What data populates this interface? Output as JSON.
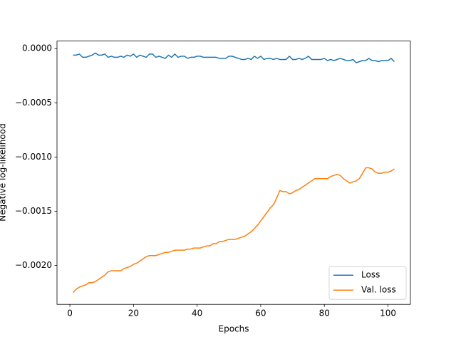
{
  "chart_data": {
    "type": "line",
    "x_label": "Epochs",
    "y_label": "Negative log-likelihood",
    "x": [
      1,
      2,
      3,
      4,
      5,
      6,
      7,
      8,
      9,
      10,
      11,
      12,
      13,
      14,
      15,
      16,
      17,
      18,
      19,
      20,
      21,
      22,
      23,
      24,
      25,
      26,
      27,
      28,
      29,
      30,
      31,
      32,
      33,
      34,
      35,
      36,
      37,
      38,
      39,
      40,
      41,
      42,
      43,
      44,
      45,
      46,
      47,
      48,
      49,
      50,
      51,
      52,
      53,
      54,
      55,
      56,
      57,
      58,
      59,
      60,
      61,
      62,
      63,
      64,
      65,
      66,
      67,
      68,
      69,
      70,
      71,
      72,
      73,
      74,
      75,
      76,
      77,
      78,
      79,
      80,
      81,
      82,
      83,
      84,
      85,
      86,
      87,
      88,
      89,
      90,
      91,
      92,
      93,
      94,
      95,
      96,
      97,
      98,
      99,
      100,
      101,
      102
    ],
    "series": [
      {
        "name": "Loss",
        "color": "#1f77b4",
        "values": [
          -6e-05,
          -6e-05,
          -5e-05,
          -8e-05,
          -8e-05,
          -7e-05,
          -6e-05,
          -4e-05,
          -6e-05,
          -6e-05,
          -5e-05,
          -8e-05,
          -7e-05,
          -8e-05,
          -8e-05,
          -7e-05,
          -8e-05,
          -6e-05,
          -7e-05,
          -5e-05,
          -8e-05,
          -6e-05,
          -7e-05,
          -8e-05,
          -5e-05,
          -5e-05,
          -8e-05,
          -7e-05,
          -8e-05,
          -9e-05,
          -6e-05,
          -8e-05,
          -5e-05,
          -8e-05,
          -7e-05,
          -7e-05,
          -9e-05,
          -8e-05,
          -8e-05,
          -7e-05,
          -7e-05,
          -8e-05,
          -8e-05,
          -8e-05,
          -8e-05,
          -8e-05,
          -9e-05,
          -9e-05,
          -9e-05,
          -7e-05,
          -7e-05,
          -8e-05,
          -9e-05,
          -0.0001,
          -0.0001,
          -9e-05,
          -0.0001,
          -7e-05,
          -9e-05,
          -7e-05,
          -0.0001,
          -9e-05,
          -9e-05,
          -0.0001,
          -9e-05,
          -0.0001,
          -0.0001,
          -0.0001,
          -7e-05,
          -0.0001,
          -0.0001,
          -9e-05,
          -0.0001,
          -9e-05,
          -7e-05,
          -0.0001,
          -0.0001,
          -0.0001,
          -0.0001,
          -9e-05,
          -0.00011,
          -0.0001,
          -0.00011,
          -0.0001,
          -9e-05,
          -0.0001,
          -0.00011,
          -0.00011,
          -0.0001,
          -0.00013,
          -0.00012,
          -0.00011,
          -0.00011,
          -9e-05,
          -0.00011,
          -0.00011,
          -0.00012,
          -0.00011,
          -0.00011,
          -0.00011,
          -9e-05,
          -0.00012
        ]
      },
      {
        "name": "Val. loss",
        "color": "#ff7f0e",
        "values": [
          -0.00225,
          -0.00222,
          -0.0022,
          -0.00219,
          -0.00218,
          -0.00216,
          -0.00216,
          -0.00215,
          -0.00213,
          -0.00211,
          -0.00209,
          -0.00206,
          -0.00205,
          -0.00205,
          -0.00205,
          -0.00205,
          -0.00203,
          -0.00202,
          -0.00201,
          -0.00199,
          -0.00198,
          -0.00196,
          -0.00194,
          -0.00192,
          -0.00191,
          -0.00191,
          -0.00191,
          -0.0019,
          -0.00189,
          -0.00188,
          -0.00188,
          -0.00187,
          -0.00186,
          -0.00186,
          -0.00186,
          -0.00186,
          -0.00185,
          -0.00185,
          -0.00184,
          -0.00184,
          -0.00184,
          -0.00183,
          -0.00182,
          -0.00182,
          -0.0018,
          -0.0018,
          -0.00178,
          -0.00178,
          -0.00177,
          -0.00176,
          -0.00176,
          -0.00176,
          -0.00175,
          -0.00174,
          -0.00173,
          -0.00171,
          -0.00169,
          -0.00166,
          -0.00163,
          -0.00159,
          -0.00155,
          -0.00151,
          -0.00147,
          -0.00144,
          -0.00138,
          -0.00131,
          -0.00132,
          -0.00132,
          -0.00134,
          -0.00133,
          -0.00131,
          -0.0013,
          -0.00128,
          -0.00126,
          -0.00124,
          -0.00122,
          -0.0012,
          -0.0012,
          -0.0012,
          -0.0012,
          -0.0012,
          -0.00118,
          -0.00117,
          -0.00116,
          -0.00117,
          -0.0012,
          -0.00122,
          -0.00124,
          -0.00123,
          -0.00122,
          -0.0012,
          -0.00115,
          -0.0011,
          -0.0011,
          -0.00111,
          -0.00114,
          -0.00115,
          -0.00115,
          -0.00114,
          -0.00114,
          -0.00113,
          -0.00111
        ]
      }
    ],
    "xlim": [
      -4.05,
      107.05
    ],
    "ylim": [
      -0.00236,
      7e-05
    ],
    "xticks": [
      0,
      20,
      40,
      60,
      80,
      100
    ],
    "yticks": [
      {
        "value": -0.002,
        "label": "−0.0020"
      },
      {
        "value": -0.0015,
        "label": "−0.0015"
      },
      {
        "value": -0.001,
        "label": "−0.0010"
      },
      {
        "value": -0.0005,
        "label": "−0.0005"
      },
      {
        "value": 0,
        "label": "0.0000"
      }
    ],
    "legend": "lower right"
  }
}
